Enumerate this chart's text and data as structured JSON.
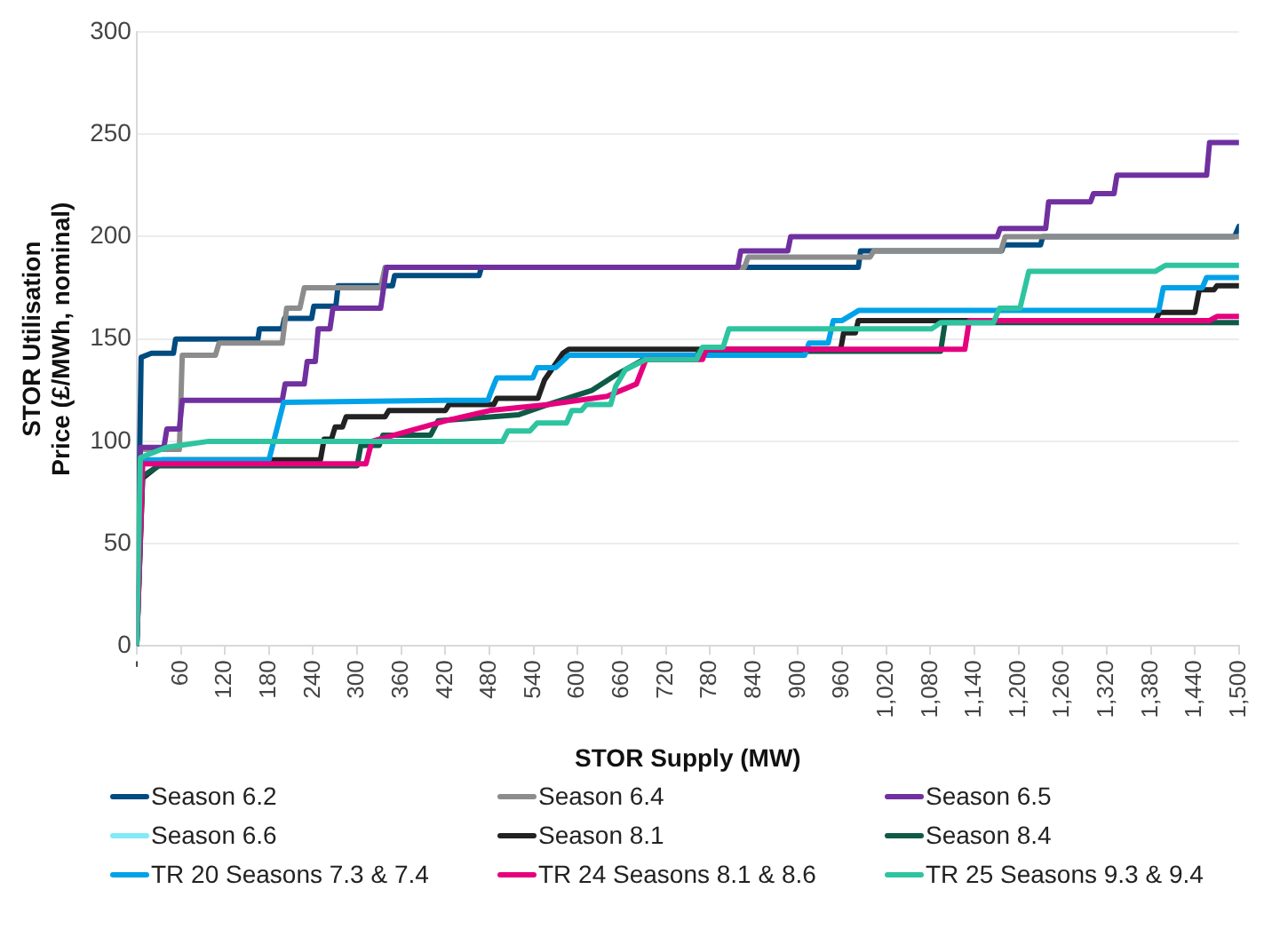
{
  "chart_data": {
    "type": "line",
    "xlabel": "STOR Supply (MW)",
    "ylabel": "STOR Utilisation Price (£/MWh, nominal)",
    "xlim": [
      0,
      1500
    ],
    "xticks": [
      {
        "value": 0,
        "label": "-"
      },
      60,
      120,
      180,
      240,
      300,
      360,
      420,
      480,
      540,
      600,
      660,
      720,
      780,
      840,
      900,
      960,
      {
        "value": 1020,
        "label": "1,020"
      },
      {
        "value": 1080,
        "label": "1,080"
      },
      {
        "value": 1140,
        "label": "1,140"
      },
      {
        "value": 1200,
        "label": "1,200"
      },
      {
        "value": 1260,
        "label": "1,260"
      },
      {
        "value": 1320,
        "label": "1,320"
      },
      {
        "value": 1380,
        "label": "1,380"
      },
      {
        "value": 1440,
        "label": "1,440"
      },
      {
        "value": 1500,
        "label": "1,500"
      }
    ],
    "ylim": [
      0,
      300
    ],
    "yticks": [
      0,
      50,
      100,
      150,
      200,
      250,
      300
    ],
    "grid": "y",
    "legend": "bottom",
    "marker": "none",
    "line_style": "solid",
    "series": [
      {
        "name": "Season 6.2",
        "color": "#004b80",
        "x": [
          0,
          6,
          20,
          50,
          53,
          165,
          167,
          198,
          201,
          238,
          241,
          271,
          274,
          348,
          351,
          466,
          469,
          982,
          985,
          1177,
          1180,
          1230,
          1233,
          1494,
          1500
        ],
        "values": [
          0,
          141,
          143,
          143,
          150,
          150,
          155,
          155,
          160,
          160,
          166,
          166,
          176,
          176,
          181,
          181,
          185,
          185,
          193,
          193,
          196,
          196,
          200,
          200,
          205
        ]
      },
      {
        "name": "Season 6.4",
        "color": "#8c8c8c",
        "x": [
          0,
          5,
          58,
          62,
          107,
          112,
          198,
          204,
          222,
          228,
          332,
          338,
          827,
          832,
          998,
          1003,
          1176,
          1182,
          1500
        ],
        "values": [
          0,
          96,
          96,
          142,
          142,
          148,
          148,
          165,
          165,
          175,
          175,
          185,
          185,
          190,
          190,
          193,
          193,
          200,
          200
        ]
      },
      {
        "name": "Season 6.5",
        "color": "#7030a0",
        "x": [
          0,
          5,
          37,
          41,
          58,
          62,
          198,
          202,
          228,
          232,
          243,
          247,
          263,
          267,
          332,
          340,
          818,
          822,
          886,
          890,
          1171,
          1175,
          1237,
          1241,
          1298,
          1302,
          1330,
          1334,
          1456,
          1460,
          1500
        ],
        "values": [
          0,
          97,
          97,
          106,
          106,
          120,
          120,
          128,
          128,
          139,
          139,
          155,
          155,
          165,
          165,
          185,
          185,
          193,
          193,
          200,
          200,
          204,
          204,
          217,
          217,
          221,
          221,
          230,
          230,
          246,
          246
        ]
      },
      {
        "name": "Season 6.6",
        "color": "#80eaf8"
      },
      {
        "name": "Season 8.1",
        "color": "#222222",
        "x": [
          0,
          8,
          29,
          35,
          250,
          255,
          265,
          270,
          280,
          285,
          338,
          343,
          420,
          425,
          486,
          490,
          546,
          555,
          580,
          588,
          958,
          962,
          978,
          982,
          1386,
          1392,
          1440,
          1446,
          1466,
          1470,
          1500
        ],
        "values": [
          0,
          82,
          88,
          91,
          91,
          101,
          101,
          107,
          107,
          112,
          112,
          115,
          115,
          118,
          118,
          121,
          121,
          130,
          143,
          145,
          145,
          153,
          153,
          159,
          159,
          163,
          163,
          174,
          174,
          176,
          176
        ]
      },
      {
        "name": "Season 8.4",
        "color": "#0e5a47",
        "x": [
          0,
          8,
          30,
          300,
          305,
          330,
          335,
          400,
          410,
          520,
          560,
          620,
          650,
          680,
          690,
          760,
          765,
          1094,
          1100,
          1500
        ],
        "values": [
          0,
          83,
          88,
          88,
          98,
          98,
          103,
          103,
          110,
          113,
          118,
          125,
          132,
          138,
          140,
          140,
          144,
          144,
          158,
          158
        ]
      },
      {
        "name": "TR 20 Seasons 7.3 & 7.4",
        "color": "#00a2e8",
        "x": [
          0,
          8,
          180,
          200,
          420,
          478,
          482,
          490,
          539,
          545,
          570,
          588,
          909,
          915,
          941,
          948,
          960,
          983,
          1391,
          1397,
          1450,
          1456,
          1500
        ],
        "values": [
          0,
          91,
          91,
          119,
          120,
          120,
          124,
          131,
          131,
          136,
          136,
          142,
          142,
          148,
          148,
          159,
          159,
          164,
          164,
          175,
          175,
          180,
          180
        ]
      },
      {
        "name": "TR 24 Seasons 8.1 & 8.6",
        "color": "#e6007e",
        "x": [
          0,
          8,
          312,
          320,
          370,
          420,
          480,
          560,
          640,
          680,
          693,
          770,
          775,
          1127,
          1133,
          1460,
          1470,
          1500
        ],
        "values": [
          0,
          89,
          89,
          100,
          105,
          110,
          115,
          118,
          122,
          128,
          140,
          140,
          145,
          145,
          159,
          159,
          161,
          161
        ]
      },
      {
        "name": "TR 25 Seasons 9.3 & 9.4",
        "color": "#2ec4a0",
        "x": [
          0,
          5,
          40,
          98,
          498,
          505,
          535,
          545,
          585,
          592,
          605,
          612,
          645,
          652,
          665,
          693,
          762,
          770,
          798,
          806,
          1082,
          1094,
          1166,
          1174,
          1202,
          1214,
          1386,
          1400,
          1500
        ],
        "values": [
          0,
          92,
          97,
          100,
          100,
          105,
          105,
          109,
          109,
          115,
          115,
          118,
          118,
          127,
          135,
          140,
          140,
          146,
          146,
          155,
          155,
          158,
          158,
          165,
          165,
          183,
          183,
          186,
          186
        ]
      }
    ]
  }
}
